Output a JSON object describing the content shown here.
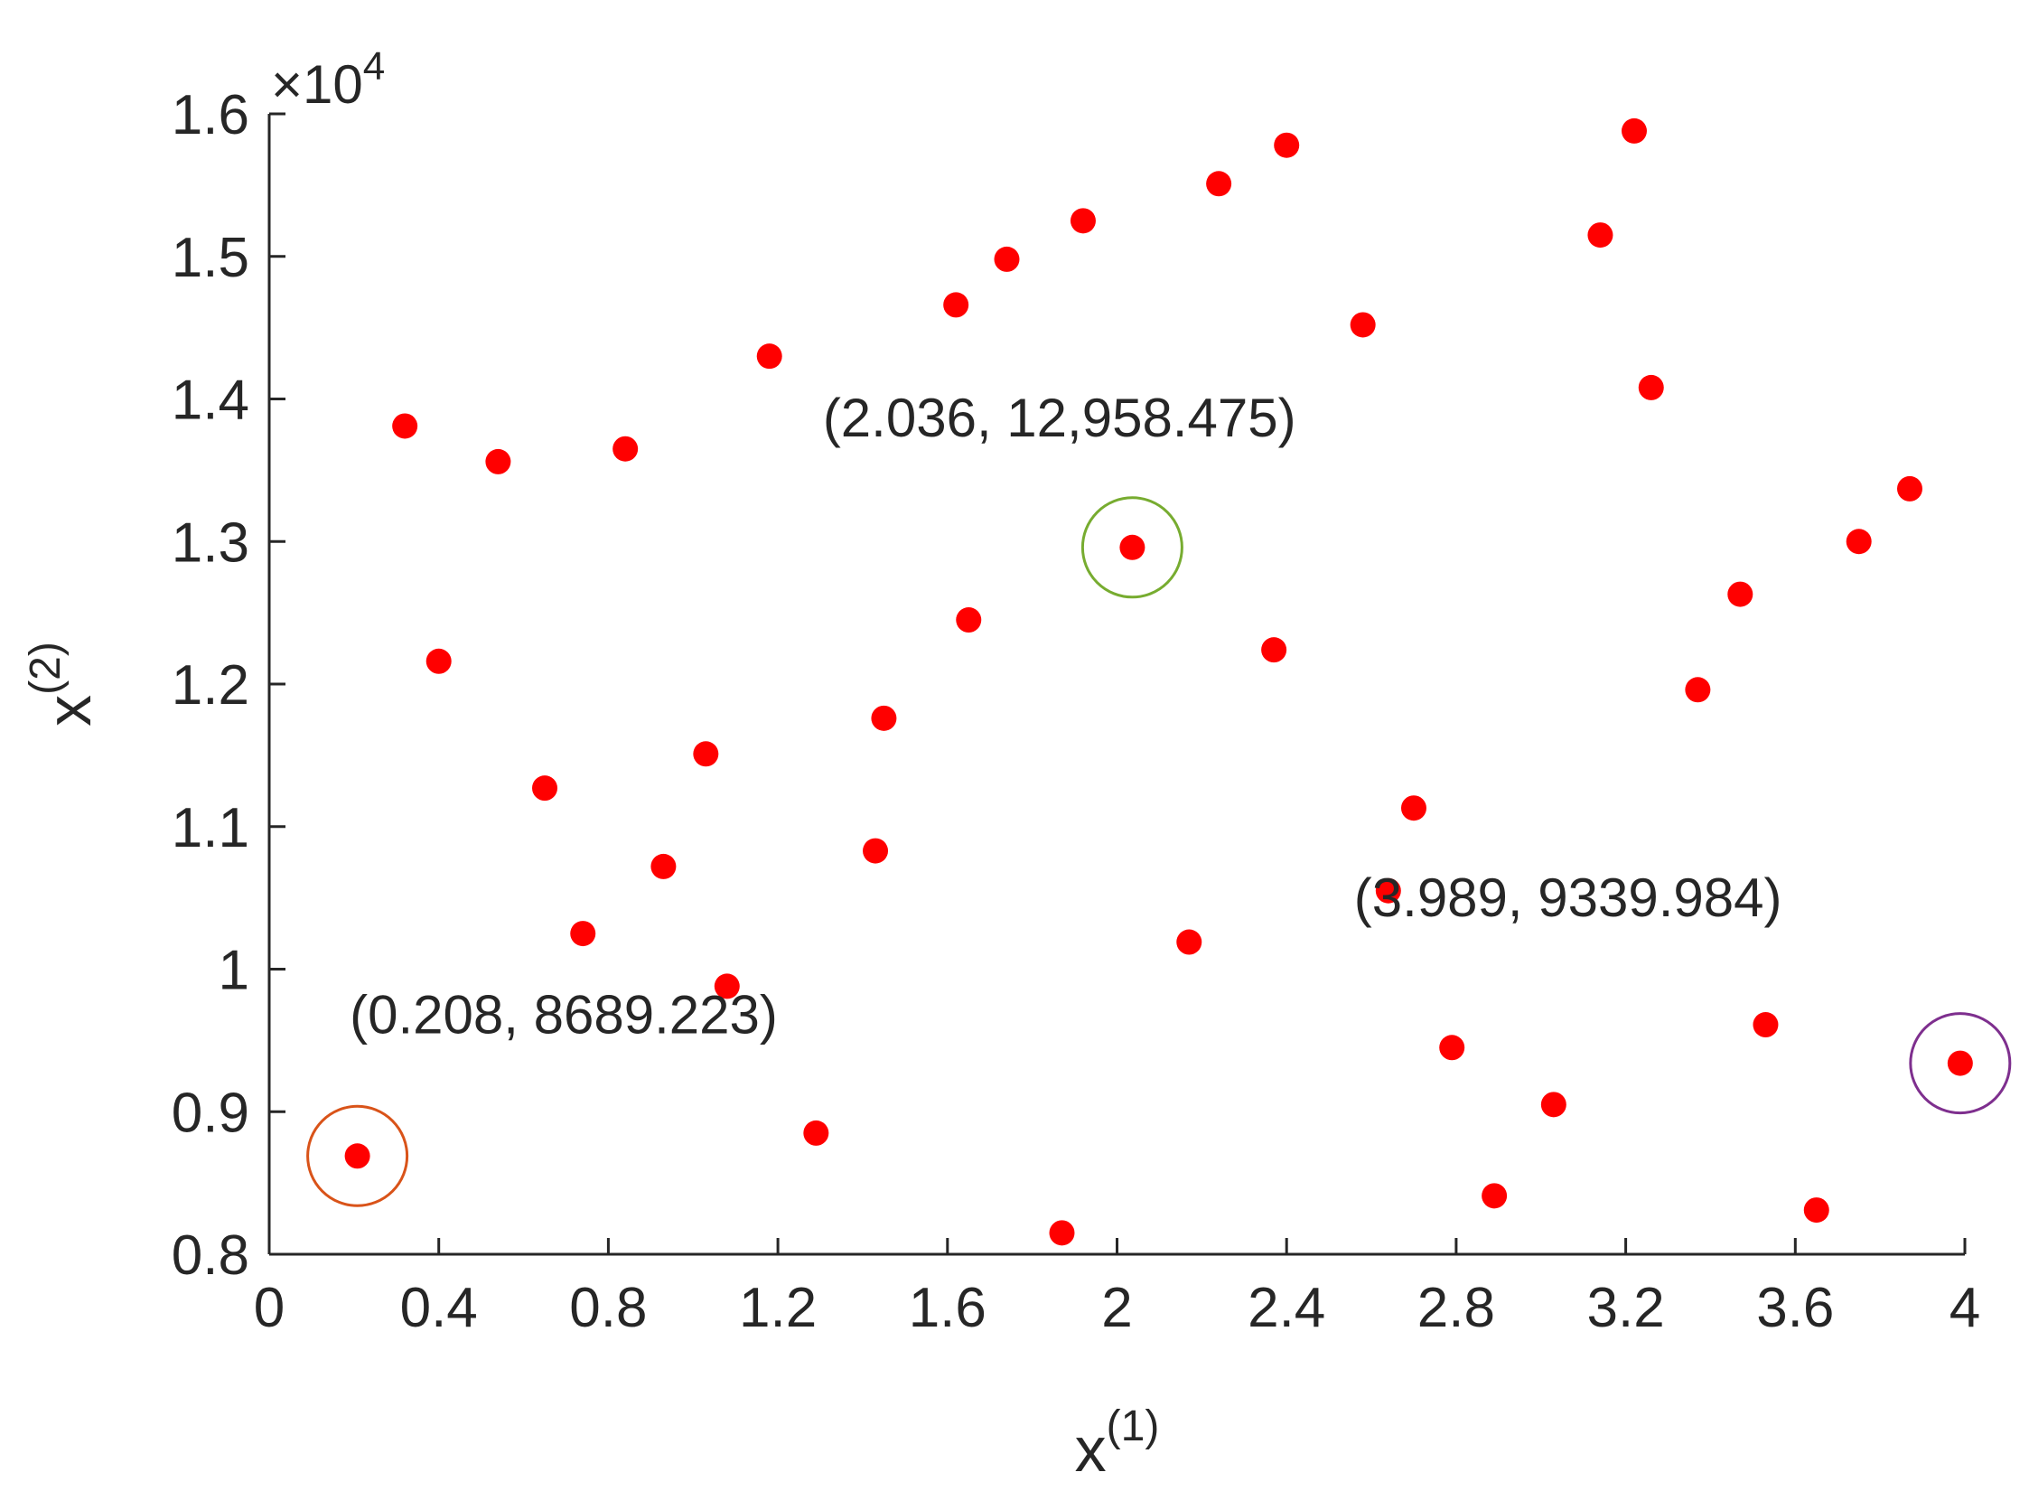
{
  "chart_data": {
    "type": "scatter",
    "xlabel": "x",
    "xlabel_sup": "(1)",
    "ylabel": "x",
    "ylabel_sup": "(2)",
    "y_multiplier": {
      "base": "×10",
      "exp": "4"
    },
    "xlim": [
      0,
      4
    ],
    "ylim": [
      8000,
      16000
    ],
    "xticks": [
      0,
      0.4,
      0.8,
      1.2,
      1.6,
      2,
      2.4,
      2.8,
      3.2,
      3.6,
      4
    ],
    "xtick_labels": [
      "0",
      "0.4",
      "0.8",
      "1.2",
      "1.6",
      "2",
      "2.4",
      "2.8",
      "3.2",
      "3.6",
      "4"
    ],
    "yticks": [
      8000,
      9000,
      10000,
      11000,
      12000,
      13000,
      14000,
      15000,
      16000
    ],
    "ytick_labels": [
      "0.8",
      "0.9",
      "1",
      "1.1",
      "1.2",
      "1.3",
      "1.4",
      "1.5",
      "1.6"
    ],
    "grid": false,
    "marker_color": "#ff0000",
    "points": [
      {
        "x": 0.208,
        "y": 8689.223
      },
      {
        "x": 0.32,
        "y": 13810
      },
      {
        "x": 0.4,
        "y": 12160
      },
      {
        "x": 0.54,
        "y": 13560
      },
      {
        "x": 0.65,
        "y": 11270
      },
      {
        "x": 0.74,
        "y": 10250
      },
      {
        "x": 0.84,
        "y": 13650
      },
      {
        "x": 0.93,
        "y": 10720
      },
      {
        "x": 1.03,
        "y": 11510
      },
      {
        "x": 1.08,
        "y": 9880
      },
      {
        "x": 1.18,
        "y": 14300
      },
      {
        "x": 1.29,
        "y": 8850
      },
      {
        "x": 1.43,
        "y": 10830
      },
      {
        "x": 1.45,
        "y": 11760
      },
      {
        "x": 1.62,
        "y": 14660
      },
      {
        "x": 1.65,
        "y": 12450
      },
      {
        "x": 1.74,
        "y": 14980
      },
      {
        "x": 1.87,
        "y": 8150
      },
      {
        "x": 1.92,
        "y": 15250
      },
      {
        "x": 2.036,
        "y": 12958.475
      },
      {
        "x": 2.17,
        "y": 10190
      },
      {
        "x": 2.24,
        "y": 15510
      },
      {
        "x": 2.37,
        "y": 12240
      },
      {
        "x": 2.4,
        "y": 15780
      },
      {
        "x": 2.58,
        "y": 14520
      },
      {
        "x": 2.64,
        "y": 10550
      },
      {
        "x": 2.7,
        "y": 11130
      },
      {
        "x": 2.79,
        "y": 9450
      },
      {
        "x": 2.89,
        "y": 8410
      },
      {
        "x": 3.03,
        "y": 9050
      },
      {
        "x": 3.14,
        "y": 15150
      },
      {
        "x": 3.22,
        "y": 15880
      },
      {
        "x": 3.26,
        "y": 14080
      },
      {
        "x": 3.37,
        "y": 11960
      },
      {
        "x": 3.47,
        "y": 12630
      },
      {
        "x": 3.53,
        "y": 9610
      },
      {
        "x": 3.65,
        "y": 8310
      },
      {
        "x": 3.75,
        "y": 13000
      },
      {
        "x": 3.87,
        "y": 13370
      },
      {
        "x": 3.989,
        "y": 9339.984
      }
    ],
    "highlights": [
      {
        "x": 0.208,
        "y": 8689.223,
        "label": "(0.208, 8689.223)",
        "color": "#d95319",
        "label_dx": -0.018,
        "label_dy": 860,
        "anchor": "start"
      },
      {
        "x": 2.036,
        "y": 12958.475,
        "label": "(2.036, 12,958.475)",
        "color": "#77ac30",
        "label_dx": -0.73,
        "label_dy": 780,
        "anchor": "start"
      },
      {
        "x": 3.989,
        "y": 9339.984,
        "label": "(3.989, 9339.984)",
        "color": "#7e2f8e",
        "label_dx": -1.43,
        "label_dy": 1030,
        "anchor": "start"
      }
    ]
  }
}
